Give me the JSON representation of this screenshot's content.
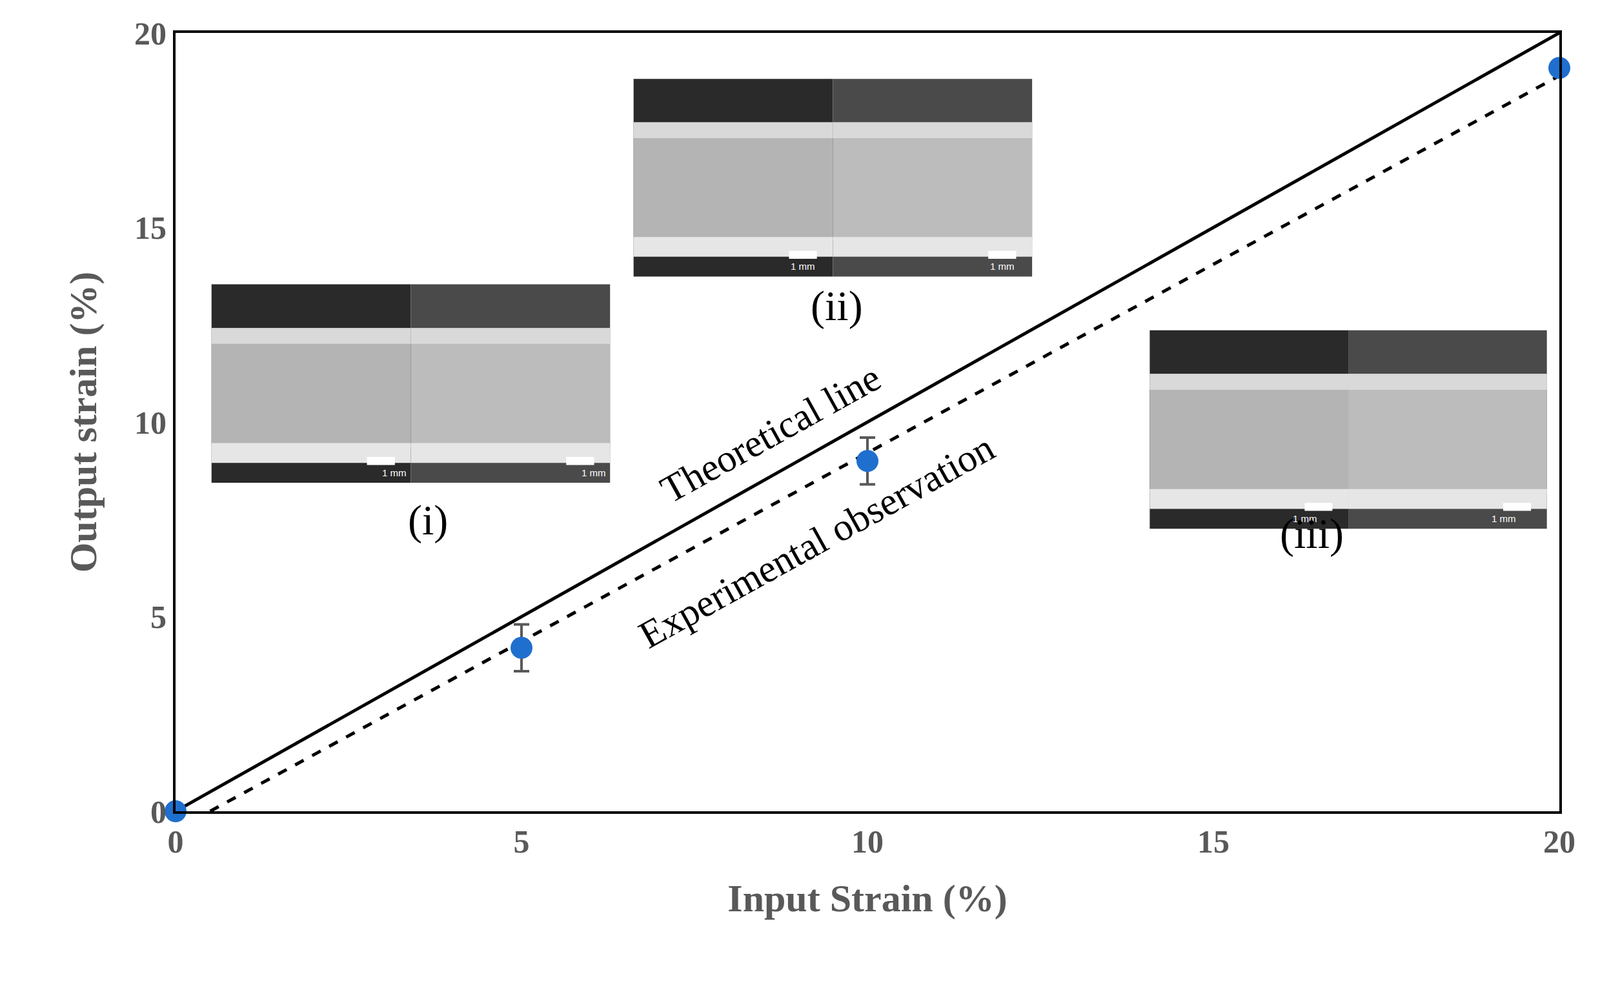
{
  "chart_data": {
    "type": "scatter",
    "x_label": "Input Strain (%)",
    "y_label": "Output strain (%)",
    "xlim": [
      0,
      20
    ],
    "ylim": [
      0,
      20
    ],
    "xticks": [
      0,
      5,
      10,
      15,
      20
    ],
    "yticks": [
      0,
      5,
      10,
      15,
      20
    ],
    "grid": false,
    "series": [
      {
        "type": "line",
        "label": "Theoretical line",
        "x": [
          0,
          20
        ],
        "values": [
          0,
          20
        ],
        "color": "#000000",
        "line_style": "solid"
      },
      {
        "type": "line",
        "label": "Experimental observation",
        "x": [
          0.5,
          20
        ],
        "values": [
          0,
          18.9
        ],
        "color": "#000000",
        "line_style": "dash"
      },
      {
        "type": "scatter",
        "x": [
          0,
          5,
          10,
          20
        ],
        "values": [
          0,
          4.2,
          9.0,
          19.1
        ],
        "error": [
          0,
          0.6,
          0.6,
          0
        ],
        "color": "#1f6fcf",
        "marker": "circle"
      }
    ],
    "insets": [
      {
        "label": "(i)",
        "scale_bars": [
          "1 mm",
          "1 mm"
        ]
      },
      {
        "label": "(ii)",
        "scale_bars": [
          "1 mm",
          "1 mm"
        ]
      },
      {
        "label": "(iii)",
        "scale_bars": [
          "1 mm",
          "1 mm"
        ]
      }
    ]
  }
}
